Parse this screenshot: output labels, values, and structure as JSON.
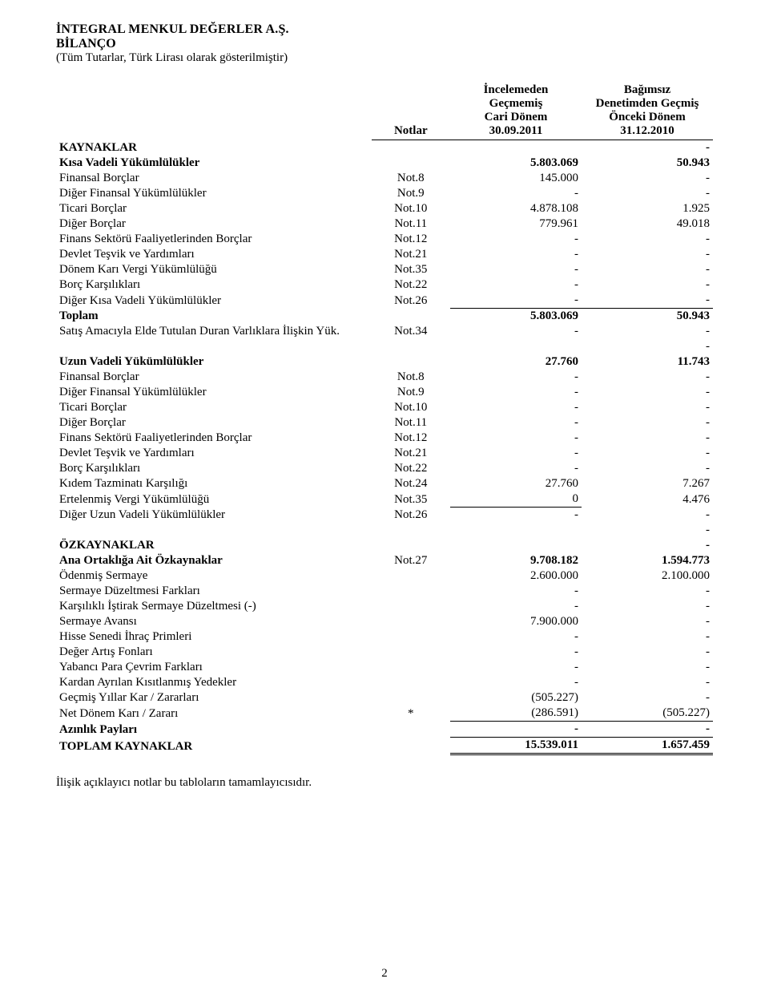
{
  "title": {
    "company": "İNTEGRAL MENKUL DEĞERLER A.Ş.",
    "report": "BİLANÇO",
    "currency_note": "(Tüm Tutarlar, Türk Lirası olarak gösterilmiştir)"
  },
  "header": {
    "notes_label": "Notlar",
    "col1_l1": "İncelemeden",
    "col1_l2": "Geçmemiş",
    "col1_l3": "Cari Dönem",
    "col1_l4": "30.09.2011",
    "col2_l1": "Bağımsız",
    "col2_l2": "Denetimden Geçmiş",
    "col2_l3": "Önceki Dönem",
    "col2_l4": "31.12.2010"
  },
  "rows": [
    {
      "type": "section",
      "label": "KAYNAKLAR",
      "note": "",
      "v1": "",
      "v2": "-",
      "bold": true
    },
    {
      "type": "row",
      "label": "Kısa Vadeli Yükümlülükler",
      "note": "",
      "v1": "5.803.069",
      "v2": "50.943",
      "bold": true
    },
    {
      "type": "row",
      "label": "Finansal Borçlar",
      "note": "Not.8",
      "v1": "145.000",
      "v2": "-"
    },
    {
      "type": "row",
      "label": "Diğer Finansal Yükümlülükler",
      "note": "Not.9",
      "v1": "-",
      "v2": "-"
    },
    {
      "type": "row",
      "label": "Ticari Borçlar",
      "note": "Not.10",
      "v1": "4.878.108",
      "v2": "1.925"
    },
    {
      "type": "row",
      "label": "Diğer Borçlar",
      "note": "Not.11",
      "v1": "779.961",
      "v2": "49.018"
    },
    {
      "type": "row",
      "label": "Finans Sektörü Faaliyetlerinden Borçlar",
      "note": "Not.12",
      "v1": "-",
      "v2": "-"
    },
    {
      "type": "row",
      "label": "Devlet Teşvik ve Yardımları",
      "note": "Not.21",
      "v1": "-",
      "v2": "-"
    },
    {
      "type": "row",
      "label": "Dönem Karı Vergi Yükümlülüğü",
      "note": "Not.35",
      "v1": "-",
      "v2": "-"
    },
    {
      "type": "row",
      "label": "Borç Karşılıkları",
      "note": "Not.22",
      "v1": "-",
      "v2": "-"
    },
    {
      "type": "row",
      "label": "Diğer Kısa Vadeli Yükümlülükler",
      "note": "Not.26",
      "v1": "-",
      "v2": "-"
    },
    {
      "type": "total",
      "label": "Toplam",
      "note": "",
      "v1": "5.803.069",
      "v2": "50.943",
      "bold": true,
      "ul1": true,
      "ul2": true
    },
    {
      "type": "row",
      "label": "Satış Amacıyla Elde Tutulan Duran Varlıklara İlişkin Yük.",
      "note": "Not.34",
      "v1": "-",
      "v2": "-"
    },
    {
      "type": "row",
      "label": "",
      "note": "",
      "v1": "",
      "v2": "-"
    },
    {
      "type": "row",
      "label": "Uzun Vadeli Yükümlülükler",
      "note": "",
      "v1": "27.760",
      "v2": "11.743",
      "bold": true
    },
    {
      "type": "row",
      "label": "Finansal Borçlar",
      "note": "Not.8",
      "v1": "-",
      "v2": "-"
    },
    {
      "type": "row",
      "label": "Diğer Finansal Yükümlülükler",
      "note": "Not.9",
      "v1": "-",
      "v2": "-"
    },
    {
      "type": "row",
      "label": "Ticari Borçlar",
      "note": "Not.10",
      "v1": "-",
      "v2": "-"
    },
    {
      "type": "row",
      "label": "Diğer Borçlar",
      "note": "Not.11",
      "v1": "-",
      "v2": "-"
    },
    {
      "type": "row",
      "label": "Finans Sektörü Faaliyetlerinden Borçlar",
      "note": "Not.12",
      "v1": "-",
      "v2": "-"
    },
    {
      "type": "row",
      "label": "Devlet Teşvik ve Yardımları",
      "note": "Not.21",
      "v1": "-",
      "v2": "-"
    },
    {
      "type": "row",
      "label": "Borç Karşılıkları",
      "note": "Not.22",
      "v1": "-",
      "v2": "-"
    },
    {
      "type": "row",
      "label": "Kıdem Tazminatı Karşılığı",
      "note": "Not.24",
      "v1": "27.760",
      "v2": "7.267"
    },
    {
      "type": "row",
      "label": "Ertelenmiş Vergi Yükümlülüğü",
      "note": "Not.35",
      "v1": "0",
      "v2": "4.476"
    },
    {
      "type": "row",
      "label": "Diğer Uzun Vadeli Yükümlülükler",
      "note": "Not.26",
      "v1": "-",
      "v2": "-",
      "ul1": true
    },
    {
      "type": "row",
      "label": "",
      "note": "",
      "v1": "",
      "v2": "-"
    },
    {
      "type": "row",
      "label": "ÖZKAYNAKLAR",
      "note": "",
      "v1": "",
      "v2": "-",
      "bold": true
    },
    {
      "type": "row",
      "label": "Ana Ortaklığa Ait Özkaynaklar",
      "note": "Not.27",
      "v1": "9.708.182",
      "v2": "1.594.773",
      "bold": true
    },
    {
      "type": "row",
      "label": "Ödenmiş Sermaye",
      "note": "",
      "v1": "2.600.000",
      "v2": "2.100.000"
    },
    {
      "type": "row",
      "label": "Sermaye Düzeltmesi Farkları",
      "note": "",
      "v1": "-",
      "v2": "-"
    },
    {
      "type": "row",
      "label": "Karşılıklı İştirak Sermaye Düzeltmesi (-)",
      "note": "",
      "v1": "-",
      "v2": "-"
    },
    {
      "type": "row",
      "label": "Sermaye Avansı",
      "note": "",
      "v1": "7.900.000",
      "v2": "-"
    },
    {
      "type": "row",
      "label": "Hisse Senedi İhraç Primleri",
      "note": "",
      "v1": "-",
      "v2": "-"
    },
    {
      "type": "row",
      "label": "Değer Artış Fonları",
      "note": "",
      "v1": "-",
      "v2": "-"
    },
    {
      "type": "row",
      "label": "Yabancı Para Çevrim Farkları",
      "note": "",
      "v1": "-",
      "v2": "-"
    },
    {
      "type": "row",
      "label": "Kardan Ayrılan Kısıtlanmış Yedekler",
      "note": "",
      "v1": "-",
      "v2": "-"
    },
    {
      "type": "row",
      "label": "Geçmiş Yıllar Kar / Zararları",
      "note": "",
      "v1": "(505.227)",
      "v2": "-"
    },
    {
      "type": "row",
      "label": "Net Dönem Karı / Zararı",
      "note": "*",
      "v1": "(286.591)",
      "v2": "(505.227)"
    },
    {
      "type": "row",
      "label": "Azınlık Payları",
      "note": "",
      "v1": "-",
      "v2": "-",
      "bold": true,
      "ul1": true,
      "ul2": true
    },
    {
      "type": "grand",
      "label": "TOPLAM KAYNAKLAR",
      "note": "",
      "v1": "15.539.011",
      "v2": "1.657.459",
      "bold": true,
      "dbl": true
    }
  ],
  "footnote": "İlişik açıklayıcı notlar bu tabloların tamamlayıcısıdır.",
  "page_number": "2"
}
